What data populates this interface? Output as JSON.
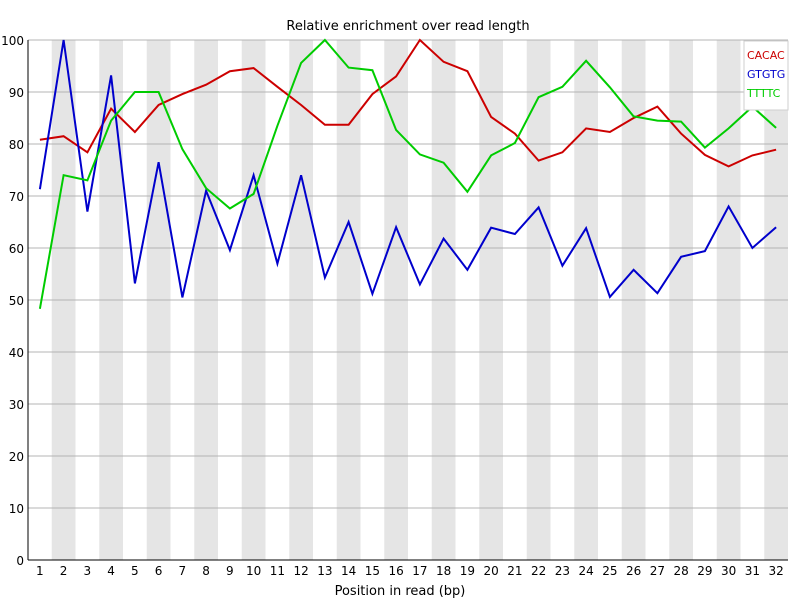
{
  "chart_data": {
    "type": "line",
    "title": "Relative enrichment over read length",
    "xlabel": "Position in read (bp)",
    "ylabel": "",
    "x": [
      "1",
      "2",
      "3",
      "4",
      "5",
      "6",
      "7",
      "8",
      "9",
      "10",
      "11",
      "12",
      "13",
      "14",
      "15",
      "16",
      "17",
      "18",
      "19",
      "20",
      "21",
      "22",
      "23",
      "24",
      "25",
      "26",
      "27",
      "28",
      "29",
      "30",
      "31",
      "32"
    ],
    "ylim": [
      0,
      100
    ],
    "yticks": [
      0,
      10,
      20,
      30,
      40,
      50,
      60,
      70,
      80,
      90,
      100
    ],
    "grid": true,
    "alternating_bands": true,
    "legend_position": "top-right",
    "series": [
      {
        "name": "CACAC",
        "color": "#cc0000",
        "values": [
          80.8,
          81.5,
          78.4,
          86.8,
          82.3,
          87.5,
          89.6,
          91.4,
          94.0,
          94.6,
          91.0,
          87.5,
          83.7,
          83.7,
          89.6,
          93.0,
          100.0,
          95.8,
          94.0,
          85.2,
          82.0,
          76.8,
          78.4,
          83.0,
          82.3,
          85.0,
          87.2,
          82.0,
          77.9,
          75.7,
          77.8,
          78.9
        ]
      },
      {
        "name": "GTGTG",
        "color": "#0000cc",
        "values": [
          71.3,
          100.0,
          67.0,
          93.2,
          53.2,
          76.5,
          50.5,
          71.0,
          59.6,
          74.0,
          57.0,
          74.0,
          54.3,
          65.0,
          51.2,
          64.0,
          53.0,
          61.8,
          55.8,
          63.9,
          62.7,
          67.8,
          56.6,
          63.8,
          50.6,
          55.8,
          51.3,
          58.3,
          59.4,
          68.0,
          60.0,
          64.0
        ]
      },
      {
        "name": "TTTTC",
        "color": "#00cc00",
        "values": [
          48.3,
          74.0,
          73.0,
          84.5,
          90.0,
          90.0,
          79.0,
          71.5,
          67.6,
          70.4,
          83.5,
          95.6,
          100.0,
          94.7,
          94.2,
          82.7,
          78.0,
          76.4,
          70.8,
          77.8,
          80.2,
          89.0,
          91.0,
          96.0,
          90.9,
          85.3,
          84.5,
          84.3,
          79.3,
          83.0,
          87.2,
          83.1
        ]
      }
    ]
  }
}
